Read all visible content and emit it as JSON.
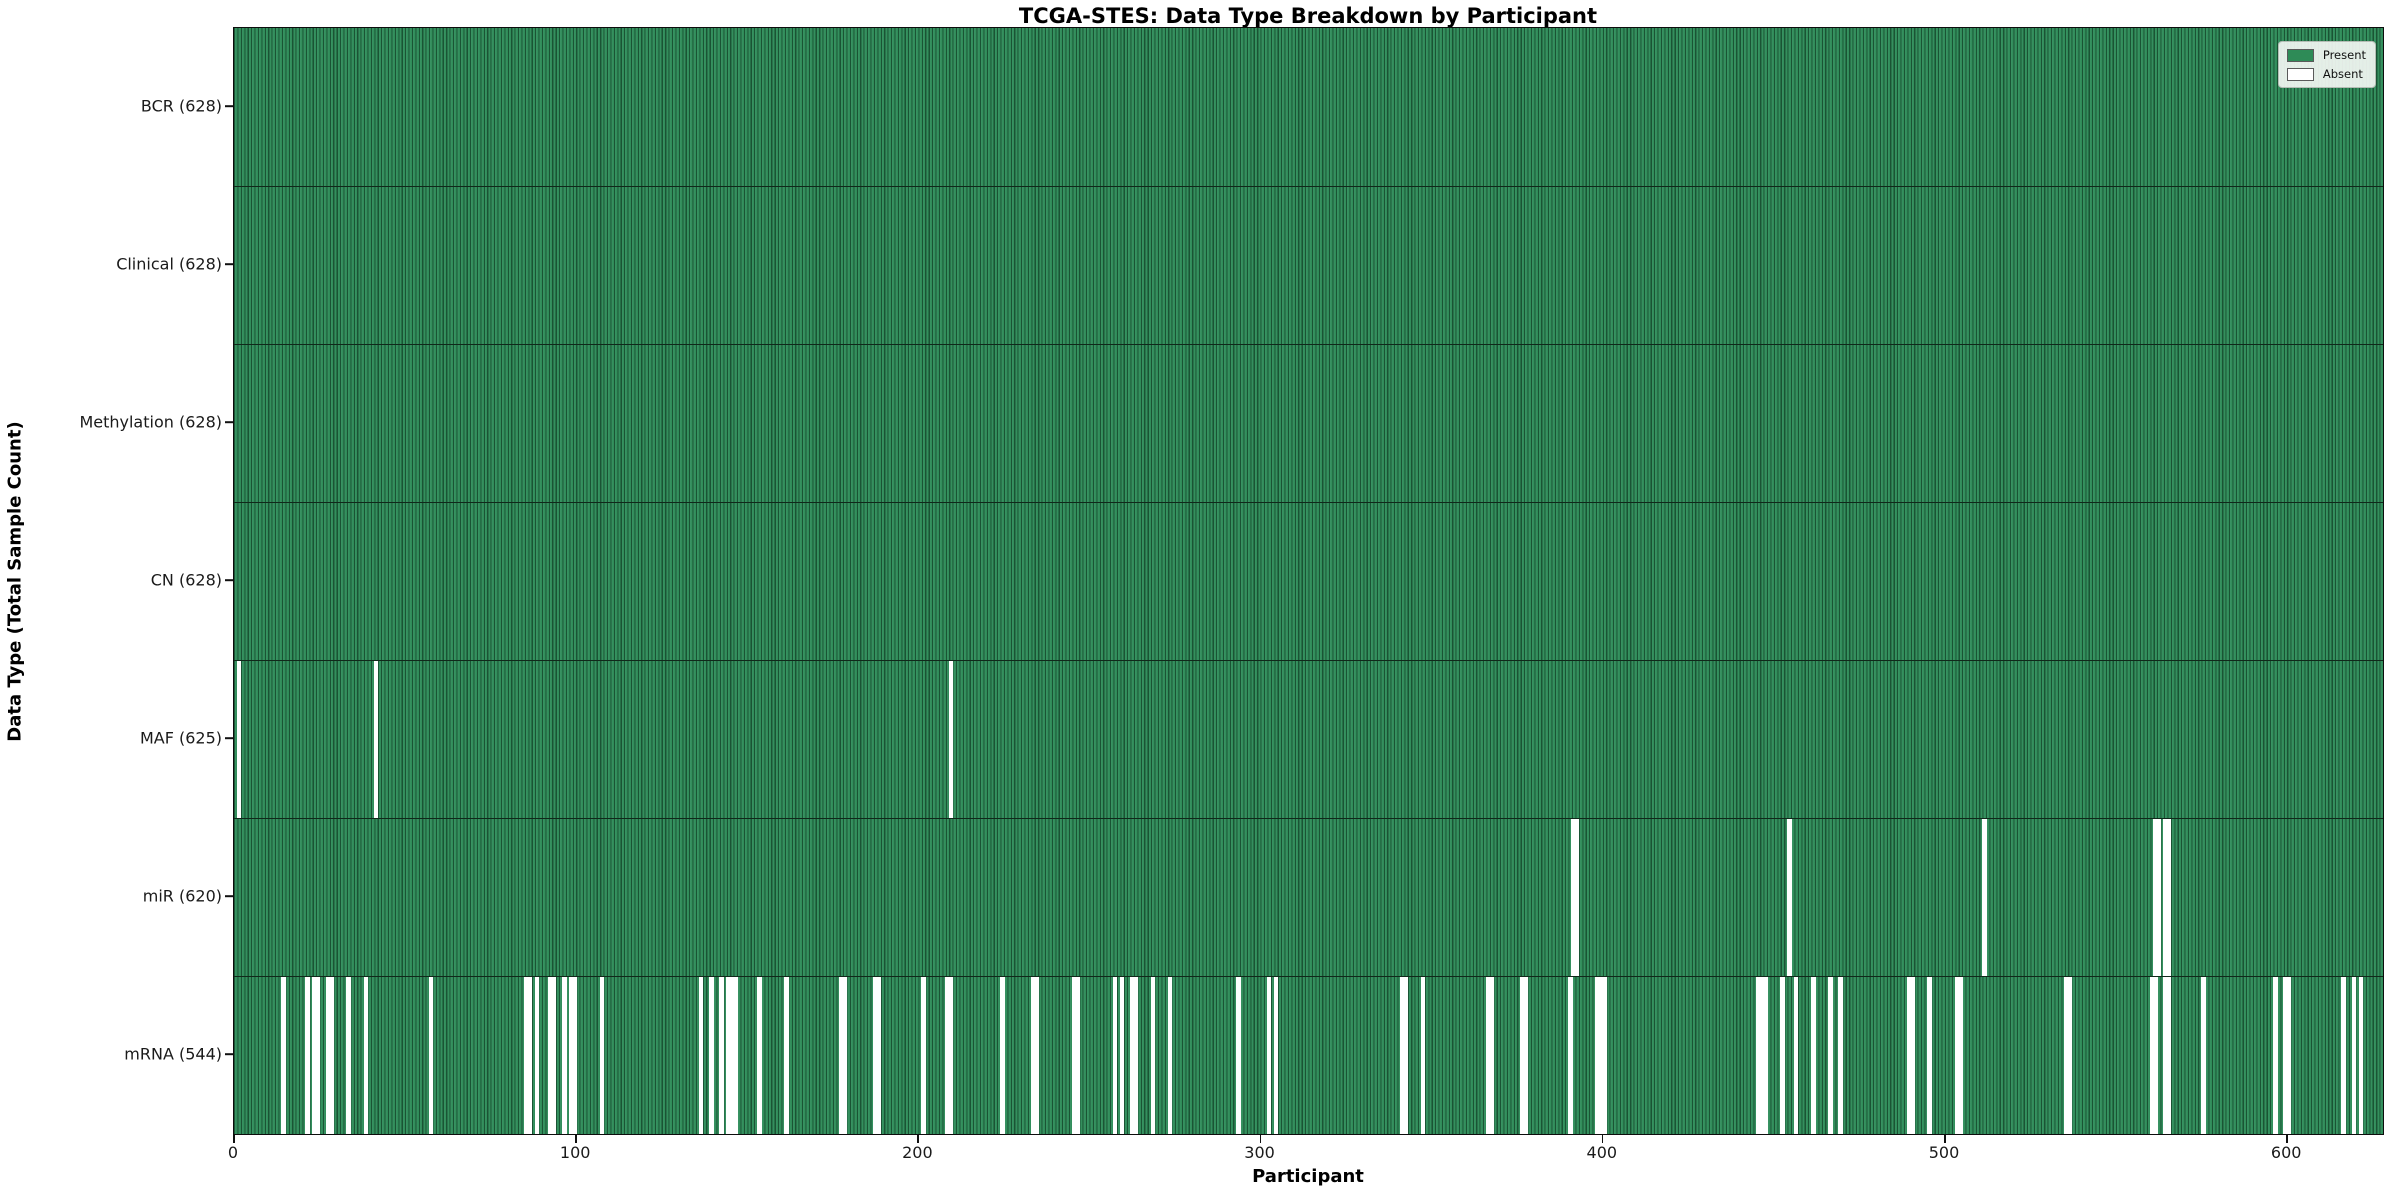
{
  "title": "TCGA-STES: Data Type Breakdown by Participant",
  "colors": {
    "present": "#2e8b57",
    "present_light": "#3a9364",
    "bar_edge": "#1a5434",
    "absent": "#ffffff",
    "frame": "#0d0d0d"
  },
  "legend": {
    "present_label": "Present",
    "absent_label": "Absent"
  },
  "chart_data": {
    "type": "heatmap",
    "title": "TCGA-STES: Data Type Breakdown by Participant",
    "xlabel": "Participant",
    "ylabel": "Data Type (Total Sample Count)",
    "legend_entries": [
      "Present",
      "Absent"
    ],
    "legend_position": "upper right",
    "x_range": [
      0,
      628
    ],
    "x_ticks": [
      0,
      100,
      200,
      300,
      400,
      500,
      600
    ],
    "n_participants": 628,
    "value_encoding": {
      "present": "seagreen cell",
      "absent": "white cell"
    },
    "rows": [
      {
        "label": "BCR",
        "count": 628,
        "display": "BCR (628)",
        "absent": []
      },
      {
        "label": "Clinical",
        "count": 628,
        "display": "Clinical (628)",
        "absent": []
      },
      {
        "label": "Methylation",
        "count": 628,
        "display": "Methylation (628)",
        "absent": []
      },
      {
        "label": "CN",
        "count": 628,
        "display": "CN (628)",
        "absent": []
      },
      {
        "label": "MAF",
        "count": 625,
        "display": "MAF (625)",
        "absent": [
          1,
          41,
          209
        ]
      },
      {
        "label": "miR",
        "count": 620,
        "display": "miR (620)",
        "absent": [
          391,
          392,
          454,
          511,
          561,
          562,
          564,
          565
        ]
      },
      {
        "label": "mRNA",
        "count": 544,
        "display": "mRNA (544)",
        "absent": [
          14,
          21,
          23,
          24,
          27,
          28,
          33,
          38,
          57,
          85,
          86,
          88,
          92,
          93,
          96,
          98,
          99,
          107,
          136,
          139,
          142,
          144,
          145,
          146,
          153,
          161,
          177,
          178,
          187,
          188,
          201,
          208,
          209,
          224,
          233,
          234,
          245,
          246,
          257,
          259,
          262,
          263,
          268,
          273,
          293,
          302,
          304,
          341,
          342,
          347,
          366,
          367,
          376,
          377,
          390,
          398,
          399,
          400,
          445,
          446,
          447,
          452,
          456,
          461,
          466,
          469,
          489,
          490,
          495,
          503,
          504,
          535,
          536,
          560,
          561,
          564,
          565,
          575,
          596,
          599,
          600,
          616,
          619,
          621
        ]
      }
    ]
  }
}
